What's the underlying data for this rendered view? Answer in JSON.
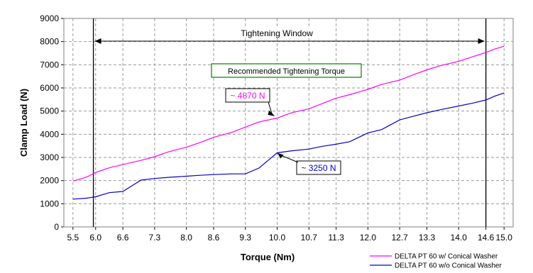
{
  "chart_data": {
    "type": "line",
    "xlabel": "Torque (Nm)",
    "ylabel": "Clamp Load (N)",
    "xlim": [
      5.3,
      15.2
    ],
    "ylim": [
      0,
      9000
    ],
    "x_ticks": [
      "5.5",
      "6.0",
      "6.6",
      "7.3",
      "8.0",
      "8.6",
      "9.3",
      "10.0",
      "10.7",
      "11.3",
      "12.0",
      "12.7",
      "13.3",
      "14.0",
      "14.6",
      "15.0"
    ],
    "y_ticks": [
      "0",
      "1000",
      "2000",
      "3000",
      "4000",
      "5000",
      "6000",
      "7000",
      "8000",
      "9000"
    ],
    "grid": true,
    "legend_position": "bottom-right",
    "series": [
      {
        "name": "DELTA PT 60 w/ Conical Washer",
        "color": "#ff00ff",
        "x": [
          5.5,
          5.8,
          6.0,
          6.3,
          6.6,
          7.0,
          7.3,
          7.6,
          8.0,
          8.3,
          8.6,
          9.0,
          9.3,
          9.6,
          10.0,
          10.3,
          10.7,
          11.0,
          11.3,
          11.6,
          12.0,
          12.3,
          12.7,
          13.0,
          13.3,
          13.6,
          14.0,
          14.3,
          14.6,
          14.8,
          15.0
        ],
        "y": [
          1980,
          2150,
          2350,
          2550,
          2690,
          2870,
          3030,
          3240,
          3440,
          3640,
          3870,
          4080,
          4310,
          4530,
          4700,
          4920,
          5100,
          5330,
          5560,
          5710,
          5940,
          6150,
          6340,
          6570,
          6780,
          6960,
          7150,
          7340,
          7530,
          7680,
          7800
        ]
      },
      {
        "name": "DELTA PT 60 w/o Conical Washer",
        "color": "#0000cc",
        "x": [
          5.5,
          5.8,
          6.0,
          6.3,
          6.6,
          7.0,
          7.3,
          7.6,
          8.0,
          8.3,
          8.6,
          9.0,
          9.3,
          9.6,
          10.0,
          10.3,
          10.7,
          11.0,
          11.3,
          11.6,
          12.0,
          12.3,
          12.7,
          13.0,
          13.3,
          13.6,
          14.0,
          14.3,
          14.6,
          14.8,
          15.0
        ],
        "y": [
          1200,
          1240,
          1300,
          1480,
          1530,
          2020,
          2090,
          2140,
          2190,
          2230,
          2260,
          2290,
          2290,
          2540,
          3200,
          3280,
          3360,
          3480,
          3570,
          3680,
          4060,
          4200,
          4620,
          4780,
          4930,
          5060,
          5220,
          5340,
          5480,
          5650,
          5780
        ]
      }
    ],
    "annotations": {
      "window_label": "Tightening Window",
      "window_start": 5.95,
      "window_end": 14.6,
      "recommended_label": "Recommended Tightening Torque",
      "upper_point_label": "~ 4870 N",
      "upper_point": [
        9.95,
        4780
      ],
      "lower_point_label": "~ 3250 N",
      "lower_point": [
        10.0,
        3200
      ]
    }
  }
}
